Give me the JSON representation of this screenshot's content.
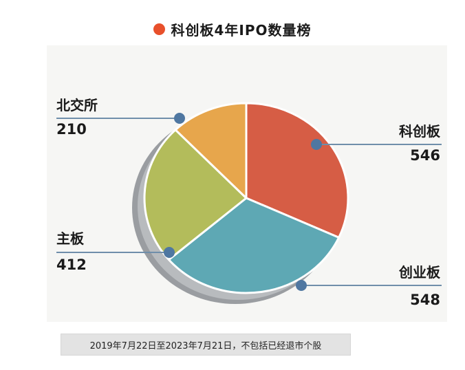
{
  "title": "科创板4年IPO数量榜",
  "chart_data": {
    "type": "pie",
    "slices": [
      {
        "name": "科创板",
        "value": 546,
        "color": "#d65d45"
      },
      {
        "name": "创业板",
        "value": 548,
        "color": "#5ea8b4"
      },
      {
        "name": "主板",
        "value": 412,
        "color": "#b3bc5b"
      },
      {
        "name": "北交所",
        "value": 210,
        "color": "#e7a64c"
      }
    ],
    "note": "2019年7月22日至2023年7月21日，不包括已经退市个股"
  },
  "colors": {
    "title_dot": "#e8502b",
    "leader": "#6f8eaa",
    "leader_dot": "#4f77a1",
    "shadow": "#9a9da1"
  }
}
